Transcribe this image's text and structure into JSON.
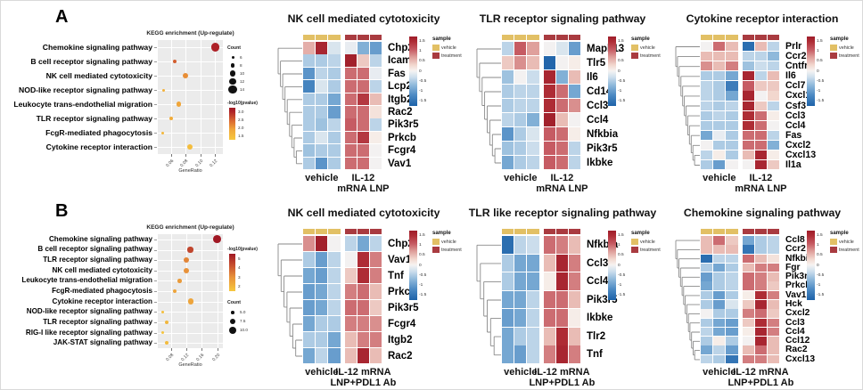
{
  "panels": [
    {
      "label": "A"
    },
    {
      "label": "B"
    }
  ],
  "colors": {
    "annotation": {
      "vehicle": "#E2C065",
      "treatment": "#A93B40"
    },
    "dotplot_panel_bg": "#EBEBEB",
    "heat_max_red": "#9C1B28",
    "heat_min_blue": "#1A5FA6"
  },
  "heatmap_common": {
    "colorbar_ticks": [
      "1.5",
      "1",
      "0.5",
      "0",
      "-0.5",
      "-1",
      "-1.5"
    ],
    "colorbar_tick_values": [
      1.5,
      1,
      0.5,
      0,
      -0.5,
      -1,
      -1.5
    ],
    "sample_legend_title": "sample",
    "sample_legend_items": [
      {
        "label": "vehicle",
        "sample": "vehicle"
      },
      {
        "label": "treatment",
        "sample": "treatment"
      }
    ],
    "zlim": [
      -1.75,
      1.75
    ]
  },
  "chart_data": [
    {
      "id": "kegg-dotplot-a",
      "panel": "A",
      "type": "scatter",
      "subtype": "kegg-dotplot",
      "title": "KEGG enrichment (Up-regulate)",
      "xlabel": "GeneRatio",
      "xticks": [
        "0.06",
        "0.08",
        "0.10",
        "0.12"
      ],
      "xtick_values": [
        0.06,
        0.08,
        0.1,
        0.12
      ],
      "xlim": [
        0.042,
        0.131
      ],
      "legend_order": [
        "count",
        "color"
      ],
      "count_legend": {
        "title": "Count",
        "labels": [
          "6",
          "8",
          "10",
          "12",
          "14"
        ],
        "values": [
          6,
          8,
          10,
          12,
          14
        ]
      },
      "color_legend": {
        "title": "-log10(pvalue)",
        "ticks": [
          "3.0",
          "2.5",
          "2.0",
          "1.5"
        ],
        "range": [
          1.4,
          3.3
        ]
      },
      "points": [
        {
          "category": "Chemokine signaling pathway",
          "gene_ratio": 0.121,
          "count": 14,
          "neg_log10_pvalue": 3.1
        },
        {
          "category": "B cell receptor signaling pathway",
          "gene_ratio": 0.065,
          "count": 8,
          "neg_log10_pvalue": 2.6
        },
        {
          "category": "NK cell mediated cytotoxicity",
          "gene_ratio": 0.08,
          "count": 10,
          "neg_log10_pvalue": 2.2
        },
        {
          "category": "NOD-like receptor signaling pathway",
          "gene_ratio": 0.05,
          "count": 6,
          "neg_log10_pvalue": 1.8
        },
        {
          "category": "Leukocyte trans-endothelial migration",
          "gene_ratio": 0.071,
          "count": 9,
          "neg_log10_pvalue": 2.0
        },
        {
          "category": "TLR receptor signaling pathway",
          "gene_ratio": 0.06,
          "count": 7,
          "neg_log10_pvalue": 1.9
        },
        {
          "category": "FcgR-mediated phagocytosis",
          "gene_ratio": 0.049,
          "count": 6,
          "neg_log10_pvalue": 1.7
        },
        {
          "category": "Cytokine receptor interaction",
          "gene_ratio": 0.086,
          "count": 10,
          "neg_log10_pvalue": 1.6
        }
      ]
    },
    {
      "id": "heatmap-a-nk",
      "panel": "A",
      "type": "heatmap",
      "title": "NK cell mediated cytotoxicity",
      "genes": [
        "Chp2",
        "Icam1",
        "Fas",
        "Lcp2",
        "Itgb2",
        "Rac2",
        "Pik3r5",
        "Prkcb",
        "Fcgr4",
        "Vav1"
      ],
      "columns": {
        "groups": [
          {
            "label_lines": [
              "vehicle"
            ],
            "n": 3,
            "sample": "vehicle"
          },
          {
            "label_lines": [
              "IL-12",
              "mRNA LNP"
            ],
            "n": 3,
            "sample": "treatment"
          }
        ]
      },
      "values": [
        [
          0.6,
          1.6,
          -0.2,
          -0.1,
          -0.8,
          -1.0
        ],
        [
          -0.5,
          -0.5,
          -0.4,
          1.7,
          0.4,
          -0.4
        ],
        [
          -1.1,
          -0.4,
          -0.5,
          1.0,
          1.0,
          -0.1
        ],
        [
          -1.3,
          -0.2,
          -0.5,
          1.0,
          1.0,
          -0.4
        ],
        [
          -0.5,
          -0.5,
          -0.9,
          1.0,
          1.4,
          0.5
        ],
        [
          -0.5,
          -0.5,
          -1.0,
          1.0,
          1.0,
          0.2
        ],
        [
          -0.5,
          -0.6,
          -0.4,
          1.1,
          1.0,
          -0.4
        ],
        [
          -0.5,
          -0.2,
          -0.5,
          1.0,
          1.4,
          0.1
        ],
        [
          -0.6,
          -0.5,
          -0.5,
          1.0,
          1.0,
          0.0
        ],
        [
          -0.5,
          -1.1,
          -0.5,
          1.0,
          1.0,
          0.0
        ]
      ]
    },
    {
      "id": "heatmap-a-tlr",
      "panel": "A",
      "type": "heatmap",
      "title": "TLR receptor signaling pathway",
      "genes": [
        "Mapk13",
        "Tlr5",
        "Il6",
        "Cd14",
        "Ccl3",
        "Ccl4",
        "Nfkbia",
        "Pik3r5",
        "Ikbke"
      ],
      "columns": {
        "groups": [
          {
            "label_lines": [
              "vehicle"
            ],
            "n": 3,
            "sample": "vehicle"
          },
          {
            "label_lines": [
              "IL-12",
              "mRNA LNP"
            ],
            "n": 3,
            "sample": "treatment"
          }
        ]
      },
      "values": [
        [
          -0.4,
          1.1,
          0.7,
          0.0,
          -0.2,
          -1.0
        ],
        [
          0.4,
          0.8,
          0.5,
          -1.7,
          0.0,
          0.1
        ],
        [
          -0.6,
          0.0,
          -0.3,
          1.6,
          -0.8,
          0.5
        ],
        [
          -0.5,
          -0.4,
          -0.4,
          1.5,
          1.0,
          -0.9
        ],
        [
          -0.5,
          -0.4,
          -0.4,
          1.5,
          1.0,
          0.8
        ],
        [
          -0.4,
          -0.5,
          -0.8,
          1.7,
          0.5,
          0.0
        ],
        [
          -1.1,
          -0.5,
          -0.2,
          1.1,
          1.0,
          0.1
        ],
        [
          -0.6,
          -0.5,
          -0.3,
          1.1,
          1.0,
          -0.4
        ],
        [
          -0.9,
          -0.5,
          -0.4,
          1.1,
          1.0,
          -0.4
        ]
      ]
    },
    {
      "id": "heatmap-a-cytokine",
      "panel": "A",
      "type": "heatmap",
      "title": "Cytokine receptor interaction",
      "genes": [
        "Prlr",
        "Ccr2",
        "Cntfr",
        "Il6",
        "Ccl7",
        "Cxcl1",
        "Csf3",
        "Ccl3",
        "Ccl4",
        "Fas",
        "Cxcl2",
        "Cxcl13",
        "Il1a"
      ],
      "columns": {
        "groups": [
          {
            "label_lines": [
              "vehicle"
            ],
            "n": 3,
            "sample": "vehicle"
          },
          {
            "label_lines": [
              "IL-12",
              "mRNA LNP"
            ],
            "n": 3,
            "sample": "treatment"
          }
        ]
      },
      "values": [
        [
          0.0,
          1.0,
          0.5,
          -1.6,
          0.5,
          -0.4
        ],
        [
          0.5,
          0.5,
          0.5,
          -0.4,
          -0.4,
          -0.7
        ],
        [
          0.8,
          0.5,
          0.9,
          -0.6,
          -0.3,
          -0.4
        ],
        [
          -0.5,
          -0.5,
          -0.9,
          1.6,
          -0.4,
          0.5
        ],
        [
          -0.4,
          -0.5,
          -1.4,
          1.1,
          0.4,
          0.4
        ],
        [
          -0.4,
          -0.5,
          -0.9,
          1.6,
          0.0,
          0.3
        ],
        [
          -0.4,
          -0.5,
          -0.4,
          1.6,
          0.4,
          -0.4
        ],
        [
          -0.5,
          -0.4,
          -0.5,
          1.5,
          1.0,
          0.1
        ],
        [
          -0.5,
          -0.5,
          -0.5,
          1.5,
          1.0,
          0.0
        ],
        [
          -0.9,
          -0.1,
          -0.5,
          1.0,
          1.0,
          -0.4
        ],
        [
          0.0,
          -0.5,
          -0.5,
          1.0,
          1.0,
          -0.8
        ],
        [
          -0.4,
          0.1,
          -0.5,
          0.5,
          1.6,
          0.1
        ],
        [
          -0.5,
          -1.0,
          0.0,
          0.0,
          1.6,
          0.4
        ]
      ]
    },
    {
      "id": "kegg-dotplot-b",
      "panel": "B",
      "type": "scatter",
      "subtype": "kegg-dotplot",
      "title": "KEGG enrichment (Up-regulate)",
      "xlabel": "GeneRatio",
      "xticks": [
        "0.08",
        "0.12",
        "0.16",
        "0.20"
      ],
      "xtick_values": [
        0.08,
        0.12,
        0.16,
        0.2
      ],
      "xlim": [
        0.045,
        0.215
      ],
      "legend_order": [
        "color",
        "count"
      ],
      "count_legend": {
        "title": "Count",
        "labels": [
          "5.0",
          "7.5",
          "10.0"
        ],
        "values": [
          5,
          7.5,
          10
        ]
      },
      "color_legend": {
        "title": "-log10(pvalue)",
        "ticks": [
          "5",
          "4",
          "3",
          "2"
        ],
        "range": [
          1.8,
          5.0
        ]
      },
      "points": [
        {
          "category": "Chemokine signaling pathway",
          "gene_ratio": 0.2,
          "count": 10,
          "neg_log10_pvalue": 5.0
        },
        {
          "category": "B cell receptor signaling pathway",
          "gene_ratio": 0.13,
          "count": 7.5,
          "neg_log10_pvalue": 4.2
        },
        {
          "category": "TLR receptor signaling pathway",
          "gene_ratio": 0.12,
          "count": 7.5,
          "neg_log10_pvalue": 3.2
        },
        {
          "category": "NK cell mediated cytotoxicity",
          "gene_ratio": 0.12,
          "count": 7.5,
          "neg_log10_pvalue": 3.0
        },
        {
          "category": "Leukocyte trans-endothelial migration",
          "gene_ratio": 0.102,
          "count": 6,
          "neg_log10_pvalue": 2.8
        },
        {
          "category": "FcgR-mediated phagocytosis",
          "gene_ratio": 0.09,
          "count": 5.5,
          "neg_log10_pvalue": 2.6
        },
        {
          "category": "Cytokine receptor interaction",
          "gene_ratio": 0.131,
          "count": 8,
          "neg_log10_pvalue": 2.6
        },
        {
          "category": "NOD-like receptor signaling pathway",
          "gene_ratio": 0.058,
          "count": 5,
          "neg_log10_pvalue": 2.0
        },
        {
          "category": "TLR receptor signaling pathway",
          "gene_ratio": 0.068,
          "count": 5.5,
          "neg_log10_pvalue": 2.2
        },
        {
          "category": "RIG-I like receptor signaling pathway",
          "gene_ratio": 0.058,
          "count": 5,
          "neg_log10_pvalue": 1.9
        },
        {
          "category": "JAK-STAT signaling pathway",
          "gene_ratio": 0.068,
          "count": 5.5,
          "neg_log10_pvalue": 2.1
        }
      ]
    },
    {
      "id": "heatmap-b-nk",
      "panel": "B",
      "type": "heatmap",
      "title": "NK cell mediated cytotoxicity",
      "genes": [
        "Chp2",
        "Vav1",
        "Tnf",
        "Prkcb",
        "Pik3r5",
        "Fcgr4",
        "Itgb2",
        "Rac2"
      ],
      "columns": {
        "groups": [
          {
            "label_lines": [
              "vehicle"
            ],
            "n": 3,
            "sample": "vehicle"
          },
          {
            "label_lines": [
              "IL-12 mRNA",
              "LNP+PDL1 Ab"
            ],
            "n": 3,
            "sample": "treatment"
          }
        ]
      },
      "values": [
        [
          0.8,
          1.7,
          0.0,
          -0.4,
          -0.9,
          -0.4
        ],
        [
          -0.5,
          -1.0,
          -0.4,
          0.0,
          1.5,
          0.9
        ],
        [
          -0.9,
          -1.0,
          -0.4,
          0.4,
          1.5,
          0.9
        ],
        [
          -1.0,
          -0.9,
          -0.4,
          0.9,
          1.0,
          0.5
        ],
        [
          -1.0,
          -0.9,
          -0.4,
          1.0,
          1.0,
          0.4
        ],
        [
          -0.9,
          -0.5,
          -0.5,
          0.9,
          0.9,
          0.8
        ],
        [
          -0.5,
          -0.5,
          -0.9,
          0.5,
          0.9,
          0.9
        ],
        [
          -0.9,
          -0.4,
          -1.0,
          0.5,
          1.6,
          0.5
        ]
      ]
    },
    {
      "id": "heatmap-b-tlr-like",
      "panel": "B",
      "type": "heatmap",
      "title": "TLR like receptor signaling pathway",
      "genes": [
        "Nfkbia",
        "Ccl3",
        "Ccl4",
        "Pik3r5",
        "Ikbke",
        "Tlr2",
        "Tnf"
      ],
      "columns": {
        "groups": [
          {
            "label_lines": [
              "vehicle"
            ],
            "n": 3,
            "sample": "vehicle"
          },
          {
            "label_lines": [
              "IL-12 mRNA",
              "LNP+PDL1 Ab"
            ],
            "n": 3,
            "sample": "treatment"
          }
        ]
      },
      "values": [
        [
          -1.6,
          -0.4,
          -0.3,
          1.0,
          0.9,
          0.5
        ],
        [
          -0.5,
          -0.9,
          -0.9,
          0.5,
          1.6,
          0.9
        ],
        [
          -0.5,
          -0.9,
          -0.9,
          0.1,
          1.6,
          0.9
        ],
        [
          -0.9,
          -0.9,
          -0.4,
          1.0,
          1.0,
          0.5
        ],
        [
          -1.0,
          -0.9,
          -0.4,
          1.0,
          1.0,
          0.1
        ],
        [
          -0.9,
          -0.5,
          -0.4,
          0.5,
          1.5,
          0.5
        ],
        [
          -0.9,
          -1.0,
          -0.4,
          0.9,
          1.6,
          0.9
        ]
      ]
    },
    {
      "id": "heatmap-b-chemokine",
      "panel": "B",
      "type": "heatmap",
      "title": "Chemokine signaling pathway",
      "genes": [
        "Ccl8",
        "Ccr2",
        "Nfkbia",
        "Fgr",
        "Pik3r5",
        "Prkcb",
        "Vav1",
        "Hck",
        "Cxcl2",
        "Ccl3",
        "Ccl4",
        "Ccl12",
        "Rac2",
        "Cxcl13"
      ],
      "columns": {
        "groups": [
          {
            "label_lines": [
              "vehicle"
            ],
            "n": 3,
            "sample": "vehicle"
          },
          {
            "label_lines": [
              "IL-12 mRNA",
              "LNP+PDL1 Ab"
            ],
            "n": 3,
            "sample": "treatment"
          }
        ]
      },
      "values": [
        [
          0.5,
          1.0,
          0.4,
          -0.9,
          -0.5,
          -0.4
        ],
        [
          0.5,
          0.5,
          0.5,
          -1.5,
          -0.5,
          -0.4
        ],
        [
          -1.6,
          -0.4,
          -0.4,
          1.0,
          0.5,
          0.2
        ],
        [
          -0.5,
          -0.9,
          -0.5,
          0.5,
          0.9,
          0.9
        ],
        [
          -1.0,
          -0.5,
          -0.4,
          1.0,
          0.9,
          0.5
        ],
        [
          -0.9,
          -0.5,
          -0.4,
          1.0,
          0.9,
          0.4
        ],
        [
          -0.5,
          -1.0,
          -0.5,
          0.1,
          1.5,
          0.9
        ],
        [
          -0.5,
          -1.0,
          -0.2,
          0.4,
          1.6,
          0.5
        ],
        [
          0.0,
          -0.5,
          -0.5,
          0.9,
          1.0,
          0.4
        ],
        [
          -0.5,
          -0.9,
          -1.0,
          0.4,
          1.5,
          0.9
        ],
        [
          -0.4,
          -0.9,
          -1.0,
          0.1,
          1.6,
          0.9
        ],
        [
          -0.5,
          0.1,
          -0.5,
          0.0,
          1.6,
          0.5
        ],
        [
          -0.9,
          -0.4,
          -1.0,
          0.5,
          1.0,
          0.5
        ],
        [
          -0.4,
          -0.5,
          -1.5,
          0.9,
          0.9,
          0.5
        ]
      ]
    }
  ]
}
